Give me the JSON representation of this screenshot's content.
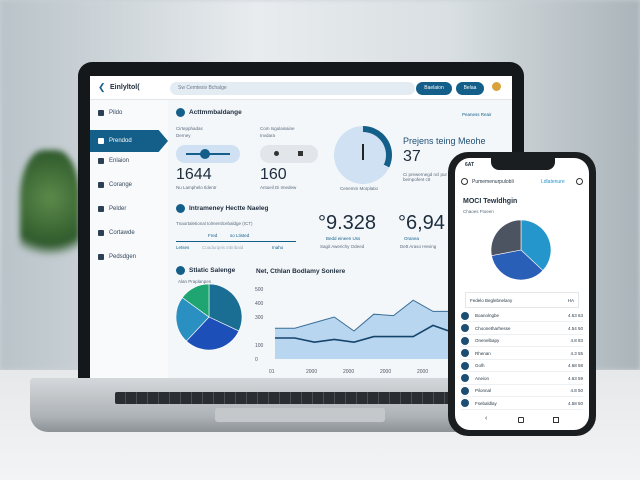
{
  "laptop": {
    "brand": "Einlyltol(",
    "search_placeholder": "Sw Cemtesiv Bchalge",
    "buttons": [
      "Baelaion",
      "Belaa"
    ],
    "sidebar": [
      {
        "label": "Pildo"
      },
      {
        "label": "Prendod",
        "active": true
      },
      {
        "label": "Enlaion"
      },
      {
        "label": "Corange"
      },
      {
        "label": "Pelder"
      },
      {
        "label": "Cortawde"
      },
      {
        "label": "Pedsdgen"
      }
    ],
    "section1": {
      "title": "Acttmmbaldange",
      "link": "Peaness Reair",
      "kpi1": {
        "label": "Cirtepphadas",
        "sub": "Derney",
        "value": "1644",
        "caption": "Nu Lamphelo Ildentr"
      },
      "kpi2": {
        "label": "Com Isgulaisaine",
        "sub": "Invdara",
        "value": "160",
        "caption": "Antueil Di Imedew"
      },
      "gauge": {
        "caption": "Cenemm Morplatio",
        "level": 0.3
      },
      "right": {
        "title": "Prejens teing Meohe",
        "value": "37",
        "caption": "Ci prewernegd ncl pur bempofent ctt"
      }
    },
    "section2": {
      "title": "Intrameney Hectte Naeleg",
      "desc": "Tnaortaletional tolmentlcebaldge (ICT)",
      "tabs": [
        "Fred",
        "so Ltisted"
      ],
      "row": [
        "Letses",
        "Coadurqeis Intinbaid",
        "Inaho"
      ],
      "stat1": {
        "value": "°9.328",
        "sub": "Bedd eineen Uss",
        "caption": "Sagit Awerichy Odeed"
      },
      "stat2": {
        "value": "°6,94",
        "sub": "Oranea",
        "caption": "Dett Araso Heving"
      }
    },
    "section3": {
      "title": "Stlatic Salenge",
      "sub": "Alan Praplanpes",
      "chart_title": "Net, Cthlan Bodlamy Sonlere"
    },
    "pie": {
      "slices": [
        {
          "value": 32,
          "color": "#1a6e93"
        },
        {
          "value": 30,
          "color": "#1d4fb8"
        },
        {
          "value": 23,
          "color": "#2a8fc1"
        },
        {
          "value": 15,
          "color": "#1fa572"
        }
      ]
    },
    "line_chart": {
      "y_ticks": [
        "0",
        "100",
        "300",
        "400",
        "500"
      ],
      "x_ticks": [
        "01",
        "2000",
        "2000",
        "2000",
        "2000",
        "2000",
        "2000"
      ],
      "series": [
        {
          "values": [
            220,
            220,
            260,
            300,
            200,
            320,
            310,
            420,
            340,
            340,
            300,
            440,
            420
          ],
          "color": "#3a6e96"
        },
        {
          "values": [
            150,
            150,
            120,
            140,
            120,
            160,
            160,
            160,
            240,
            190,
            230,
            280,
            300
          ],
          "color": "#16456c"
        }
      ],
      "ylim": [
        0,
        500
      ]
    }
  },
  "phone": {
    "time": "6AT",
    "header": "Pumemenurpulobli",
    "link": "Ldlatenure",
    "title": "MOCI Tewldhgin",
    "subtitle": "Chaoes Ftoeen",
    "pie": {
      "slices": [
        {
          "value": 37,
          "color": "#2596cc"
        },
        {
          "value": 35,
          "color": "#2a5fb8"
        },
        {
          "value": 28,
          "color": "#4b5460"
        }
      ]
    },
    "table_header": {
      "label": "Fedelo Beglebnelany",
      "value": "HA"
    },
    "rows": [
      {
        "label": "Boanolngbe",
        "value": "4.63 63"
      },
      {
        "label": "Choonetharhesse",
        "value": "4.54 50"
      },
      {
        "label": "Onenelbapy",
        "value": "4.8 83"
      },
      {
        "label": "Rhenan",
        "value": "4.3 55"
      },
      {
        "label": "Golh",
        "value": "4.68 58"
      },
      {
        "label": "Aneion",
        "value": "4.63 59"
      },
      {
        "label": "Pilonnal",
        "value": "4.8 50"
      },
      {
        "label": "Fsebaldlay",
        "value": "4.58 50"
      }
    ]
  }
}
